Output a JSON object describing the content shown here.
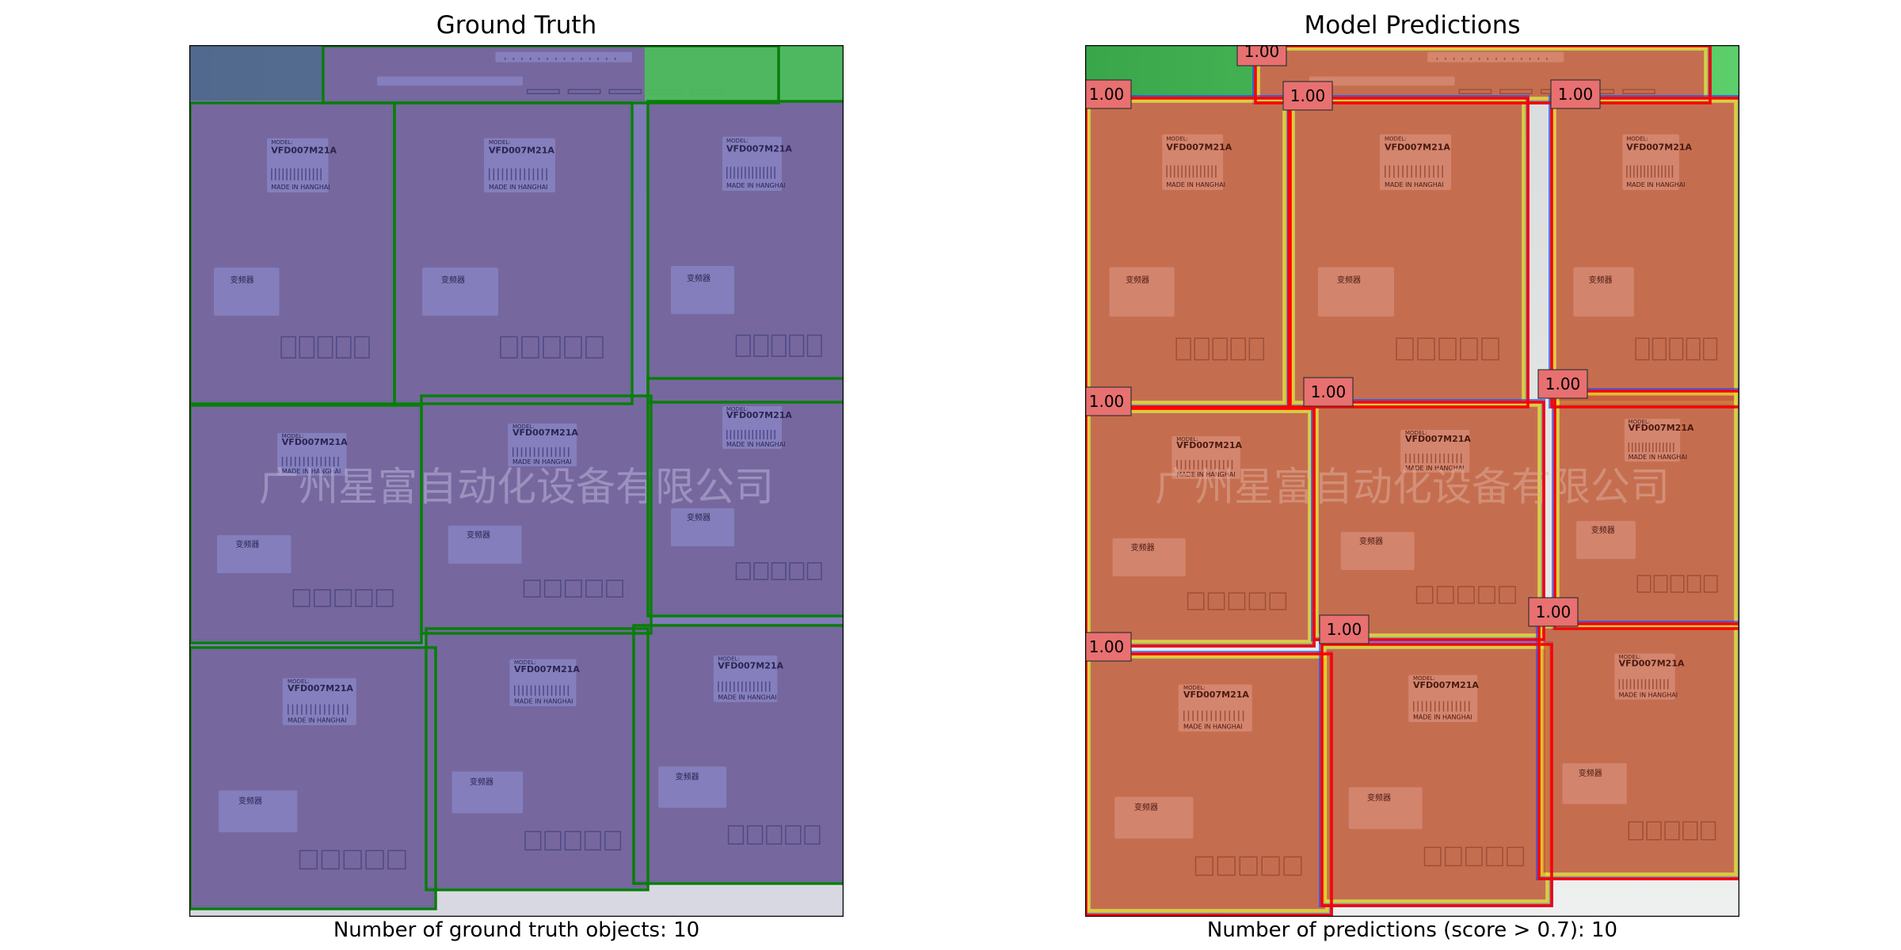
{
  "panels": {
    "ground_truth": {
      "title": "Ground Truth",
      "caption": "Number of ground truth objects: 10",
      "box_color": "#0a7d0a",
      "tint_color": "#5a52a8"
    },
    "predictions": {
      "title": "Model Predictions",
      "caption": "Number of predictions (score > 0.7): 10",
      "box_color": "#ff0000",
      "label_bg": "#e87070",
      "heat_color": "#c85a3a",
      "scores": [
        "1.00",
        "1.00",
        "1.00",
        "1.00",
        "1.00",
        "1.00",
        "1.00",
        "1.00",
        "1.00",
        "1.00"
      ]
    }
  },
  "scene": {
    "watermark": "广州星富自动化设备有限公司",
    "box_model": "VFD007M21A",
    "box_made_in": "MADE IN HANGHAI",
    "box_model_label": "MODEL:",
    "box_cn_label": "变频器"
  }
}
